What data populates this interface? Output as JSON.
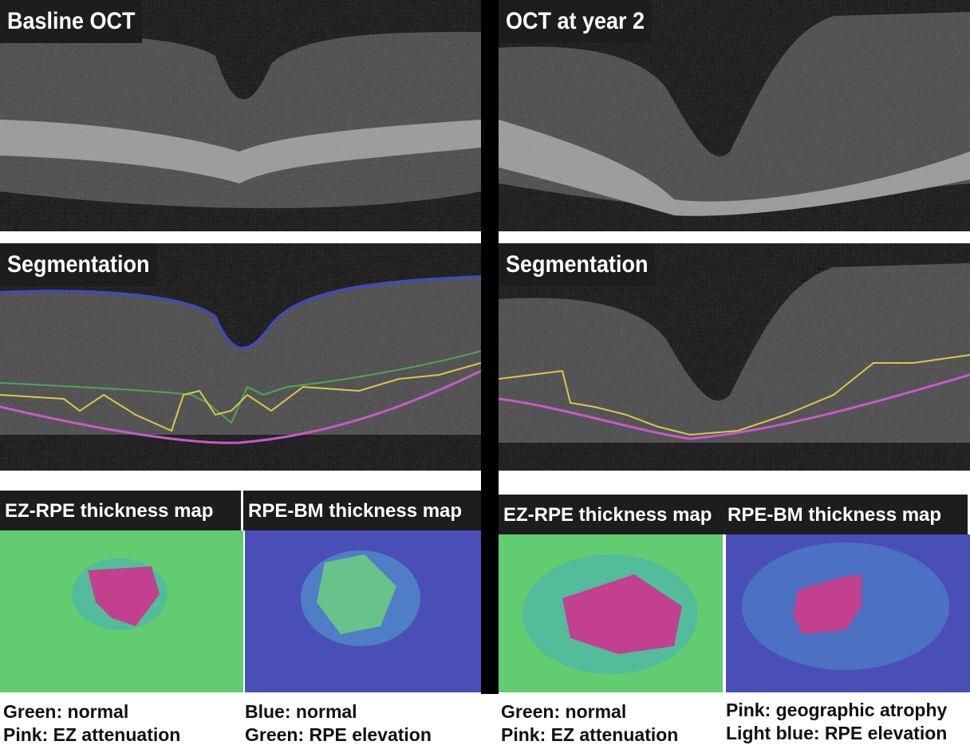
{
  "panels": {
    "baseline": "Basline OCT",
    "year2": "OCT at year 2",
    "seg_left": "Segmentation",
    "seg_right": "Segmentation"
  },
  "maps": {
    "left_ez": {
      "title": "EZ-RPE thickness map",
      "cap1": "Green: normal",
      "cap2": "Pink: EZ attenuation"
    },
    "left_rpe": {
      "title": "RPE-BM thickness map",
      "cap1": "Blue: normal",
      "cap2": "Green: RPE elevation"
    },
    "right_ez": {
      "title": "EZ-RPE thickness map",
      "cap1": "Green: normal",
      "cap2": "Pink: EZ attenuation"
    },
    "right_rpe": {
      "title": "RPE-BM thickness map",
      "cap1": "Pink: geographic atrophy",
      "cap2": "Light blue: RPE elevation"
    }
  },
  "colors": {
    "green": "#5fcf6a",
    "pink": "#c2418f",
    "blue": "#4a4fb8",
    "lightblue": "#58d8e0",
    "seg_blue": "#3f48c8",
    "seg_yellow": "#d8c94a",
    "seg_magenta": "#c85ac8",
    "seg_green": "#4fa45a"
  }
}
